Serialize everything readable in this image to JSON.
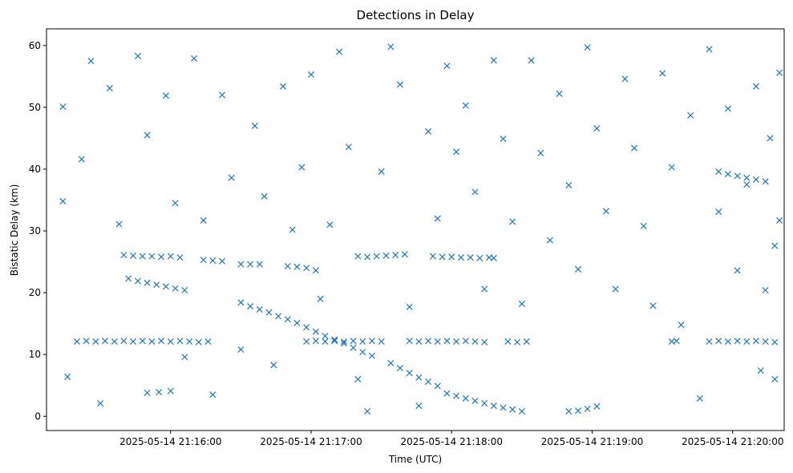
{
  "chart_data": {
    "type": "scatter",
    "title": "Detections in Delay",
    "xlabel": "Time (UTC)",
    "ylabel": "Bistatic Delay (km)",
    "marker": "x",
    "color": "#1f77b4",
    "x_unit": "time (UTC)",
    "xlim": [
      "2025-05-14 21:15:07",
      "2025-05-14 21:20:22"
    ],
    "ylim": [
      -2.3,
      62.7
    ],
    "xticks": [
      "2025-05-14 21:16:00",
      "2025-05-14 21:17:00",
      "2025-05-14 21:18:00",
      "2025-05-14 21:19:00",
      "2025-05-14 21:20:00"
    ],
    "yticks": [
      0,
      10,
      20,
      30,
      40,
      50,
      60
    ],
    "grid": false,
    "legend": null,
    "series": [
      {
        "points": [
          [
            "2025-05-14 21:15:20",
            12.1
          ],
          [
            "2025-05-14 21:15:24",
            12.2
          ],
          [
            "2025-05-14 21:15:28",
            12.1
          ],
          [
            "2025-05-14 21:15:32",
            12.2
          ],
          [
            "2025-05-14 21:15:36",
            12.1
          ],
          [
            "2025-05-14 21:15:40",
            12.2
          ],
          [
            "2025-05-14 21:15:44",
            12.1
          ],
          [
            "2025-05-14 21:15:48",
            12.2
          ],
          [
            "2025-05-14 21:15:52",
            12.1
          ],
          [
            "2025-05-14 21:15:56",
            12.2
          ],
          [
            "2025-05-14 21:16:00",
            12.1
          ],
          [
            "2025-05-14 21:16:04",
            12.2
          ],
          [
            "2025-05-14 21:16:08",
            12.1
          ],
          [
            "2025-05-14 21:16:12",
            12.0
          ],
          [
            "2025-05-14 21:16:16",
            12.1
          ],
          [
            "2025-05-14 21:16:58",
            12.1
          ],
          [
            "2025-05-14 21:17:02",
            12.2
          ],
          [
            "2025-05-14 21:17:06",
            12.1
          ],
          [
            "2025-05-14 21:17:10",
            12.2
          ],
          [
            "2025-05-14 21:17:14",
            12.1
          ],
          [
            "2025-05-14 21:17:18",
            12.2
          ],
          [
            "2025-05-14 21:17:22",
            12.1
          ],
          [
            "2025-05-14 21:17:26",
            12.2
          ],
          [
            "2025-05-14 21:17:30",
            12.1
          ],
          [
            "2025-05-14 21:17:42",
            12.2
          ],
          [
            "2025-05-14 21:17:46",
            12.1
          ],
          [
            "2025-05-14 21:17:50",
            12.2
          ],
          [
            "2025-05-14 21:17:54",
            12.1
          ],
          [
            "2025-05-14 21:17:58",
            12.2
          ],
          [
            "2025-05-14 21:18:02",
            12.1
          ],
          [
            "2025-05-14 21:18:06",
            12.2
          ],
          [
            "2025-05-14 21:18:10",
            12.1
          ],
          [
            "2025-05-14 21:18:14",
            12.0
          ],
          [
            "2025-05-14 21:18:24",
            12.1
          ],
          [
            "2025-05-14 21:18:28",
            12.0
          ],
          [
            "2025-05-14 21:18:32",
            12.1
          ],
          [
            "2025-05-14 21:19:34",
            12.1
          ],
          [
            "2025-05-14 21:19:36",
            12.2
          ],
          [
            "2025-05-14 21:19:50",
            12.1
          ],
          [
            "2025-05-14 21:19:54",
            12.2
          ],
          [
            "2025-05-14 21:19:58",
            12.1
          ],
          [
            "2025-05-14 21:20:02",
            12.2
          ],
          [
            "2025-05-14 21:20:06",
            12.1
          ],
          [
            "2025-05-14 21:20:10",
            12.2
          ],
          [
            "2025-05-14 21:20:14",
            12.1
          ],
          [
            "2025-05-14 21:20:18",
            12.0
          ],
          [
            "2025-05-14 21:15:40",
            26.1
          ],
          [
            "2025-05-14 21:15:44",
            26.0
          ],
          [
            "2025-05-14 21:15:48",
            25.9
          ],
          [
            "2025-05-14 21:15:52",
            25.9
          ],
          [
            "2025-05-14 21:15:56",
            25.8
          ],
          [
            "2025-05-14 21:16:00",
            25.9
          ],
          [
            "2025-05-14 21:16:04",
            25.7
          ],
          [
            "2025-05-14 21:16:14",
            25.3
          ],
          [
            "2025-05-14 21:16:18",
            25.2
          ],
          [
            "2025-05-14 21:16:22",
            25.1
          ],
          [
            "2025-05-14 21:16:30",
            24.6
          ],
          [
            "2025-05-14 21:16:34",
            24.6
          ],
          [
            "2025-05-14 21:16:38",
            24.6
          ],
          [
            "2025-05-14 21:16:50",
            24.3
          ],
          [
            "2025-05-14 21:16:54",
            24.2
          ],
          [
            "2025-05-14 21:16:58",
            24.0
          ],
          [
            "2025-05-14 21:17:02",
            23.6
          ],
          [
            "2025-05-14 21:17:20",
            25.9
          ],
          [
            "2025-05-14 21:17:24",
            25.8
          ],
          [
            "2025-05-14 21:17:28",
            25.9
          ],
          [
            "2025-05-14 21:17:32",
            26.0
          ],
          [
            "2025-05-14 21:17:36",
            26.1
          ],
          [
            "2025-05-14 21:17:40",
            26.2
          ],
          [
            "2025-05-14 21:17:52",
            25.9
          ],
          [
            "2025-05-14 21:17:56",
            25.8
          ],
          [
            "2025-05-14 21:18:00",
            25.8
          ],
          [
            "2025-05-14 21:18:04",
            25.7
          ],
          [
            "2025-05-14 21:18:08",
            25.7
          ],
          [
            "2025-05-14 21:18:12",
            25.6
          ],
          [
            "2025-05-14 21:18:16",
            25.7
          ],
          [
            "2025-05-14 21:18:18",
            25.6
          ],
          [
            "2025-05-14 21:15:42",
            22.3
          ],
          [
            "2025-05-14 21:15:46",
            21.9
          ],
          [
            "2025-05-14 21:15:50",
            21.6
          ],
          [
            "2025-05-14 21:15:54",
            21.3
          ],
          [
            "2025-05-14 21:15:58",
            21.0
          ],
          [
            "2025-05-14 21:16:02",
            20.7
          ],
          [
            "2025-05-14 21:16:06",
            20.4
          ],
          [
            "2025-05-14 21:16:30",
            18.4
          ],
          [
            "2025-05-14 21:16:34",
            17.8
          ],
          [
            "2025-05-14 21:16:38",
            17.3
          ],
          [
            "2025-05-14 21:16:42",
            16.8
          ],
          [
            "2025-05-14 21:16:46",
            16.2
          ],
          [
            "2025-05-14 21:16:50",
            15.7
          ],
          [
            "2025-05-14 21:16:54",
            15.1
          ],
          [
            "2025-05-14 21:16:58",
            14.4
          ],
          [
            "2025-05-14 21:17:02",
            13.7
          ],
          [
            "2025-05-14 21:17:06",
            13.0
          ],
          [
            "2025-05-14 21:17:10",
            12.4
          ],
          [
            "2025-05-14 21:17:14",
            11.8
          ],
          [
            "2025-05-14 21:17:18",
            11.1
          ],
          [
            "2025-05-14 21:17:22",
            10.4
          ],
          [
            "2025-05-14 21:17:26",
            9.8
          ],
          [
            "2025-05-14 21:17:34",
            8.6
          ],
          [
            "2025-05-14 21:17:38",
            7.8
          ],
          [
            "2025-05-14 21:17:42",
            7.0
          ],
          [
            "2025-05-14 21:17:46",
            6.3
          ],
          [
            "2025-05-14 21:17:50",
            5.6
          ],
          [
            "2025-05-14 21:17:54",
            4.9
          ],
          [
            "2025-05-14 21:17:58",
            3.7
          ],
          [
            "2025-05-14 21:18:02",
            3.3
          ],
          [
            "2025-05-14 21:18:06",
            2.9
          ],
          [
            "2025-05-14 21:18:10",
            2.5
          ],
          [
            "2025-05-14 21:18:14",
            2.1
          ],
          [
            "2025-05-14 21:18:18",
            1.7
          ],
          [
            "2025-05-14 21:18:22",
            1.4
          ],
          [
            "2025-05-14 21:18:26",
            1.1
          ],
          [
            "2025-05-14 21:18:30",
            0.8
          ],
          [
            "2025-05-14 21:18:50",
            0.8
          ],
          [
            "2025-05-14 21:18:54",
            0.9
          ],
          [
            "2025-05-14 21:18:58",
            1.2
          ],
          [
            "2025-05-14 21:19:02",
            1.6
          ],
          [
            "2025-05-14 21:19:54",
            39.6
          ],
          [
            "2025-05-14 21:19:58",
            39.2
          ],
          [
            "2025-05-14 21:20:02",
            38.9
          ],
          [
            "2025-05-14 21:20:06",
            38.6
          ],
          [
            "2025-05-14 21:20:10",
            38.3
          ],
          [
            "2025-05-14 21:20:14",
            38.0
          ],
          [
            "2025-05-14 21:15:50",
            3.8
          ],
          [
            "2025-05-14 21:15:55",
            3.9
          ],
          [
            "2025-05-14 21:16:00",
            4.1
          ],
          [
            "2025-05-14 21:15:14",
            50.1
          ],
          [
            "2025-05-14 21:15:14",
            34.8
          ],
          [
            "2025-05-14 21:15:16",
            6.4
          ],
          [
            "2025-05-14 21:15:22",
            41.6
          ],
          [
            "2025-05-14 21:15:26",
            57.5
          ],
          [
            "2025-05-14 21:15:30",
            2.1
          ],
          [
            "2025-05-14 21:15:34",
            53.1
          ],
          [
            "2025-05-14 21:15:38",
            31.1
          ],
          [
            "2025-05-14 21:15:46",
            58.3
          ],
          [
            "2025-05-14 21:15:50",
            45.5
          ],
          [
            "2025-05-14 21:15:58",
            51.9
          ],
          [
            "2025-05-14 21:16:02",
            34.5
          ],
          [
            "2025-05-14 21:16:06",
            9.6
          ],
          [
            "2025-05-14 21:16:10",
            57.9
          ],
          [
            "2025-05-14 21:16:14",
            31.7
          ],
          [
            "2025-05-14 21:16:18",
            3.5
          ],
          [
            "2025-05-14 21:16:22",
            52.0
          ],
          [
            "2025-05-14 21:16:26",
            38.6
          ],
          [
            "2025-05-14 21:16:30",
            10.8
          ],
          [
            "2025-05-14 21:16:36",
            47.0
          ],
          [
            "2025-05-14 21:16:40",
            35.6
          ],
          [
            "2025-05-14 21:16:44",
            8.3
          ],
          [
            "2025-05-14 21:16:48",
            53.4
          ],
          [
            "2025-05-14 21:16:52",
            30.2
          ],
          [
            "2025-05-14 21:16:56",
            40.3
          ],
          [
            "2025-05-14 21:17:00",
            55.3
          ],
          [
            "2025-05-14 21:17:04",
            19.0
          ],
          [
            "2025-05-14 21:17:08",
            31.0
          ],
          [
            "2025-05-14 21:17:12",
            59.0
          ],
          [
            "2025-05-14 21:17:16",
            43.6
          ],
          [
            "2025-05-14 21:17:20",
            6.0
          ],
          [
            "2025-05-14 21:17:24",
            0.8
          ],
          [
            "2025-05-14 21:17:30",
            39.6
          ],
          [
            "2025-05-14 21:17:34",
            59.8
          ],
          [
            "2025-05-14 21:17:38",
            53.7
          ],
          [
            "2025-05-14 21:17:42",
            17.7
          ],
          [
            "2025-05-14 21:17:46",
            1.7
          ],
          [
            "2025-05-14 21:17:50",
            46.1
          ],
          [
            "2025-05-14 21:17:54",
            32.0
          ],
          [
            "2025-05-14 21:17:58",
            56.7
          ],
          [
            "2025-05-14 21:18:02",
            42.8
          ],
          [
            "2025-05-14 21:18:06",
            50.3
          ],
          [
            "2025-05-14 21:18:10",
            36.3
          ],
          [
            "2025-05-14 21:18:14",
            20.6
          ],
          [
            "2025-05-14 21:18:18",
            57.6
          ],
          [
            "2025-05-14 21:18:22",
            44.9
          ],
          [
            "2025-05-14 21:18:26",
            31.5
          ],
          [
            "2025-05-14 21:18:30",
            18.2
          ],
          [
            "2025-05-14 21:18:34",
            57.6
          ],
          [
            "2025-05-14 21:18:38",
            42.6
          ],
          [
            "2025-05-14 21:18:42",
            28.5
          ],
          [
            "2025-05-14 21:18:46",
            52.2
          ],
          [
            "2025-05-14 21:18:50",
            37.4
          ],
          [
            "2025-05-14 21:18:54",
            23.8
          ],
          [
            "2025-05-14 21:18:58",
            59.7
          ],
          [
            "2025-05-14 21:19:02",
            46.6
          ],
          [
            "2025-05-14 21:19:06",
            33.2
          ],
          [
            "2025-05-14 21:19:10",
            20.6
          ],
          [
            "2025-05-14 21:19:14",
            54.6
          ],
          [
            "2025-05-14 21:19:18",
            43.4
          ],
          [
            "2025-05-14 21:19:22",
            30.8
          ],
          [
            "2025-05-14 21:19:26",
            17.9
          ],
          [
            "2025-05-14 21:19:30",
            55.5
          ],
          [
            "2025-05-14 21:19:34",
            40.3
          ],
          [
            "2025-05-14 21:19:38",
            14.8
          ],
          [
            "2025-05-14 21:19:42",
            48.7
          ],
          [
            "2025-05-14 21:19:46",
            2.9
          ],
          [
            "2025-05-14 21:19:50",
            59.4
          ],
          [
            "2025-05-14 21:19:54",
            33.1
          ],
          [
            "2025-05-14 21:19:58",
            49.8
          ],
          [
            "2025-05-14 21:20:02",
            23.6
          ],
          [
            "2025-05-14 21:20:06",
            37.5
          ],
          [
            "2025-05-14 21:20:10",
            53.4
          ],
          [
            "2025-05-14 21:20:14",
            20.4
          ],
          [
            "2025-05-14 21:20:16",
            45.0
          ],
          [
            "2025-05-14 21:20:18",
            6.0
          ],
          [
            "2025-05-14 21:20:20",
            55.6
          ],
          [
            "2025-05-14 21:20:20",
            31.7
          ],
          [
            "2025-05-14 21:20:18",
            27.6
          ],
          [
            "2025-05-14 21:20:12",
            7.4
          ]
        ]
      }
    ]
  }
}
